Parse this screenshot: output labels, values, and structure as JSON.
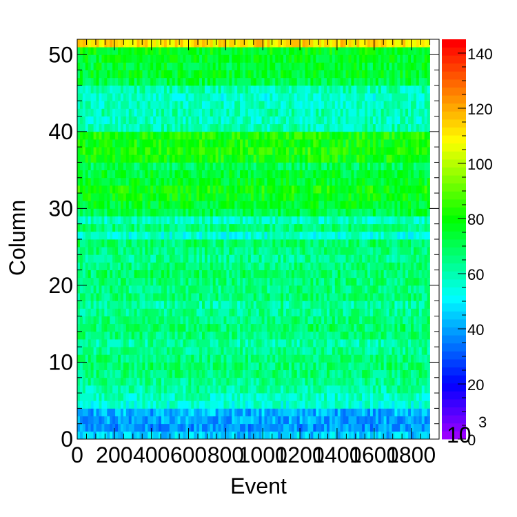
{
  "chart_data": {
    "type": "heatmap",
    "xlabel": "Event",
    "ylabel": "Column",
    "xlim": [
      0,
      1950
    ],
    "ylim": [
      0,
      52
    ],
    "x_tick_labels": [
      "0",
      "200",
      "400",
      "600",
      "800",
      "1000",
      "1200",
      "1400",
      "1600",
      "1800"
    ],
    "x_tick_values": [
      0,
      200,
      400,
      600,
      800,
      1000,
      1200,
      1400,
      1600,
      1800
    ],
    "y_tick_labels": [
      "0",
      "10",
      "20",
      "30",
      "40",
      "50"
    ],
    "y_tick_values": [
      0,
      10,
      20,
      30,
      40,
      50
    ],
    "zlim": [
      0,
      145
    ],
    "z_tick_labels": [
      "0",
      "20",
      "40",
      "60",
      "80",
      "100",
      "120",
      "140"
    ],
    "z_tick_values": [
      0,
      20,
      40,
      60,
      80,
      100,
      120,
      140
    ],
    "z_exponent_label": "10",
    "z_exponent_power": "3",
    "colormap": "rainbow",
    "rows": 52,
    "typical_value_per_column": [
      45,
      38,
      40,
      42,
      55,
      58,
      62,
      64,
      66,
      68,
      66,
      64,
      62,
      66,
      68,
      66,
      64,
      62,
      66,
      65,
      66,
      68,
      66,
      64,
      66,
      68,
      55,
      66,
      58,
      72,
      75,
      78,
      80,
      76,
      74,
      70,
      80,
      82,
      80,
      82,
      60,
      58,
      60,
      58,
      56,
      60,
      72,
      75,
      74,
      76,
      78,
      112
    ],
    "grid": false,
    "legend": "colorbar-right"
  }
}
